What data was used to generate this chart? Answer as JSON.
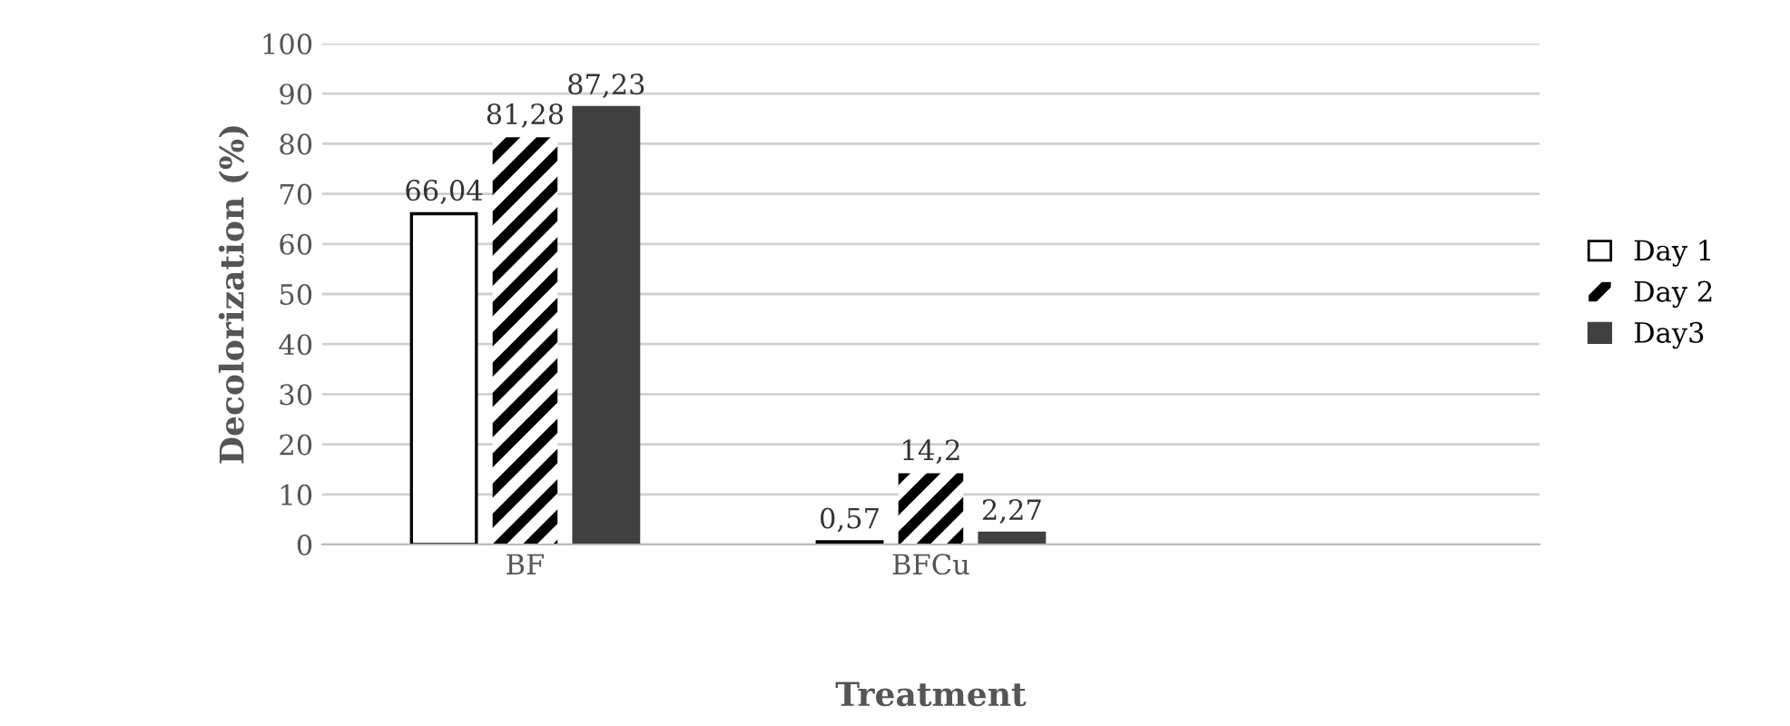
{
  "chart_data": {
    "type": "bar",
    "xlabel": "Treatment",
    "ylabel": "Decolorization (%)",
    "categories": [
      "BF",
      "BFCu",
      null
    ],
    "series": [
      {
        "name": "Day 1",
        "color": "#ffffff",
        "values": [
          66.04,
          0.57,
          null
        ],
        "value_labels": [
          "66,04",
          "0,57",
          null
        ]
      },
      {
        "name": "Day 2",
        "color": "#000000",
        "values": [
          81.28,
          14.2,
          null
        ],
        "value_labels": [
          "81,28",
          "14,2",
          null
        ]
      },
      {
        "name": "Day3",
        "color": "#404040",
        "values": [
          87.23,
          2.27,
          null
        ],
        "value_labels": [
          "87,23",
          "2,27",
          null
        ]
      }
    ],
    "ylim": [
      0,
      100
    ],
    "yticks": [
      0,
      10,
      20,
      30,
      40,
      50,
      60,
      70,
      80,
      90,
      100
    ],
    "grid": "y",
    "legend": "right"
  }
}
